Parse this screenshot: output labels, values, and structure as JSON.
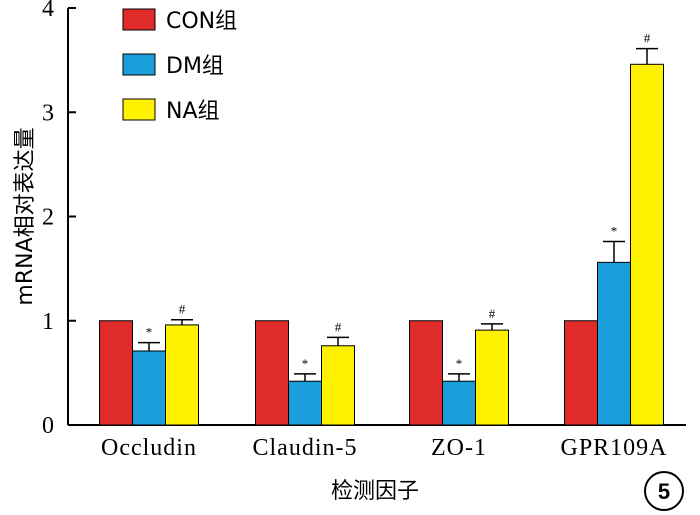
{
  "chart_data": {
    "type": "bar",
    "categories": [
      "Occludin",
      "Claudin-5",
      "ZO-1",
      "GPR109A"
    ],
    "series": [
      {
        "name": "CON组",
        "color": "#e02b2b",
        "values": [
          1.0,
          1.0,
          1.0,
          1.0
        ],
        "errors": [
          0,
          0,
          0,
          0
        ],
        "marks": [
          "",
          "",
          "",
          ""
        ]
      },
      {
        "name": "DM组",
        "color": "#1b9fdc",
        "values": [
          0.71,
          0.42,
          0.42,
          1.56
        ],
        "errors": [
          0.08,
          0.07,
          0.07,
          0.2
        ],
        "marks": [
          "*",
          "*",
          "*",
          "*"
        ]
      },
      {
        "name": "NA组",
        "color": "#fff200",
        "values": [
          0.96,
          0.76,
          0.91,
          3.46
        ],
        "errors": [
          0.05,
          0.08,
          0.06,
          0.15
        ],
        "marks": [
          "#",
          "#",
          "#",
          "#"
        ]
      }
    ],
    "xlabel": "检测因子",
    "ylabel": "mRNA相对表达量",
    "ylim": [
      0,
      4
    ],
    "yticks": [
      0,
      1,
      2,
      3,
      4
    ],
    "legend_position": "top-left",
    "grid": false,
    "panel_number": "5"
  }
}
